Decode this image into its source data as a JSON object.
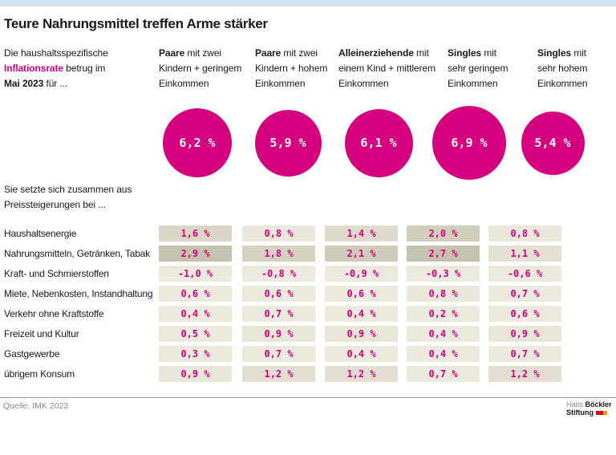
{
  "title": "Teure Nahrungsmittel treffen Arme stärker",
  "intro": {
    "line1": "Die haushaltsspezifische",
    "highlight": "Inflationsrate",
    "line2_rest": " betrug im",
    "line3_bold": "Mai 2023",
    "line3_rest": " für ..."
  },
  "columns": [
    {
      "bold": "Paare",
      "first_rest": " mit zwei",
      "line2": "Kindern + geringem",
      "line3": "Einkommen",
      "rate": 6.2
    },
    {
      "bold": "Paare",
      "first_rest": " mit zwei",
      "line2": "Kindern + hohem",
      "line3": "Einkommen",
      "rate": 5.9
    },
    {
      "bold": "Alleinerziehende",
      "first_rest": " mit",
      "line2": "einem Kind + mittlerem",
      "line3": "Einkommen",
      "rate": 6.1
    },
    {
      "bold": "Singles",
      "first_rest": " mit",
      "line2": "sehr geringem",
      "line3": "Einkommen",
      "rate": 6.9
    },
    {
      "bold": "Singles",
      "first_rest": " mit",
      "line2": "sehr hohem",
      "line3": "Einkommen",
      "rate": 5.4
    }
  ],
  "composition": {
    "line1": "Sie setzte sich zusammen aus",
    "line2": "Preissteigerungen bei ..."
  },
  "rows": [
    {
      "label": "Haushaltsenergie",
      "values": [
        1.6,
        0.8,
        1.4,
        2.0,
        0.8
      ]
    },
    {
      "label": "Nahrungsmitteln, Getränken, Tabak",
      "values": [
        2.9,
        1.8,
        2.1,
        2.7,
        1.1
      ]
    },
    {
      "label": "Kraft- und Schmierstoffen",
      "values": [
        -1.0,
        -0.8,
        -0.9,
        -0.3,
        -0.6
      ]
    },
    {
      "label": "Miete, Nebenkosten, Instandhaltung",
      "values": [
        0.6,
        0.6,
        0.6,
        0.8,
        0.7
      ]
    },
    {
      "label": "Verkehr ohne Kraftstoffe",
      "values": [
        0.4,
        0.7,
        0.4,
        0.2,
        0.6
      ]
    },
    {
      "label": "Freizeit und Kultur",
      "values": [
        0.5,
        0.9,
        0.9,
        0.4,
        0.9
      ]
    },
    {
      "label": "Gastgewerbe",
      "values": [
        0.3,
        0.7,
        0.4,
        0.4,
        0.7
      ]
    },
    {
      "label": "übrigem Konsum",
      "values": [
        0.9,
        1.2,
        1.2,
        0.7,
        1.2
      ]
    }
  ],
  "source": "Quelle: IMK 2023",
  "logo": {
    "gray": "Hans",
    "bold1": "Böckler",
    "bold2": "Stiftung"
  },
  "colors": {
    "magenta": "#d6007f",
    "topbar": "#cee5ef",
    "cell_light": "#ece9de",
    "cell_dark": "#c5c2af",
    "logo_red": "#e2001a",
    "logo_orange": "#f59b00"
  },
  "chart_data": {
    "type": "table",
    "title": "Teure Nahrungsmittel treffen Arme stärker",
    "subtitle": "Die haushaltsspezifische Inflationsrate betrug im Mai 2023 für ...",
    "unit": "%",
    "period": "Mai 2023",
    "columns": [
      "Paare mit zwei Kindern + geringem Einkommen",
      "Paare mit zwei Kindern + hohem Einkommen",
      "Alleinerziehende mit einem Kind + mittlerem Einkommen",
      "Singles mit sehr geringem Einkommen",
      "Singles mit sehr hohem Einkommen"
    ],
    "inflation_rate_total": [
      6.2,
      5.9,
      6.1,
      6.9,
      5.4
    ],
    "categories": [
      "Haushaltsenergie",
      "Nahrungsmitteln, Getränken, Tabak",
      "Kraft- und Schmierstoffen",
      "Miete, Nebenkosten, Instandhaltung",
      "Verkehr ohne Kraftstoffe",
      "Freizeit und Kultur",
      "Gastgewerbe",
      "übrigem Konsum"
    ],
    "series": [
      {
        "name": "Paare mit zwei Kindern + geringem Einkommen",
        "values": [
          1.6,
          2.9,
          -1.0,
          0.6,
          0.4,
          0.5,
          0.3,
          0.9
        ]
      },
      {
        "name": "Paare mit zwei Kindern + hohem Einkommen",
        "values": [
          0.8,
          1.8,
          -0.8,
          0.6,
          0.7,
          0.9,
          0.7,
          1.2
        ]
      },
      {
        "name": "Alleinerziehende mit einem Kind + mittlerem Einkommen",
        "values": [
          1.4,
          2.1,
          -0.9,
          0.6,
          0.4,
          0.9,
          0.4,
          1.2
        ]
      },
      {
        "name": "Singles mit sehr geringem Einkommen",
        "values": [
          2.0,
          2.7,
          -0.3,
          0.8,
          0.2,
          0.4,
          0.4,
          0.7
        ]
      },
      {
        "name": "Singles mit sehr hohem Einkommen",
        "values": [
          0.8,
          1.1,
          -0.6,
          0.7,
          0.6,
          0.9,
          0.7,
          1.2
        ]
      }
    ],
    "legend": "Zellfarbe: dunkler = höherer Beitrag (Heatmap), Kreisgröße proportional zur Inflationsrate",
    "source": "Quelle: IMK 2023"
  }
}
